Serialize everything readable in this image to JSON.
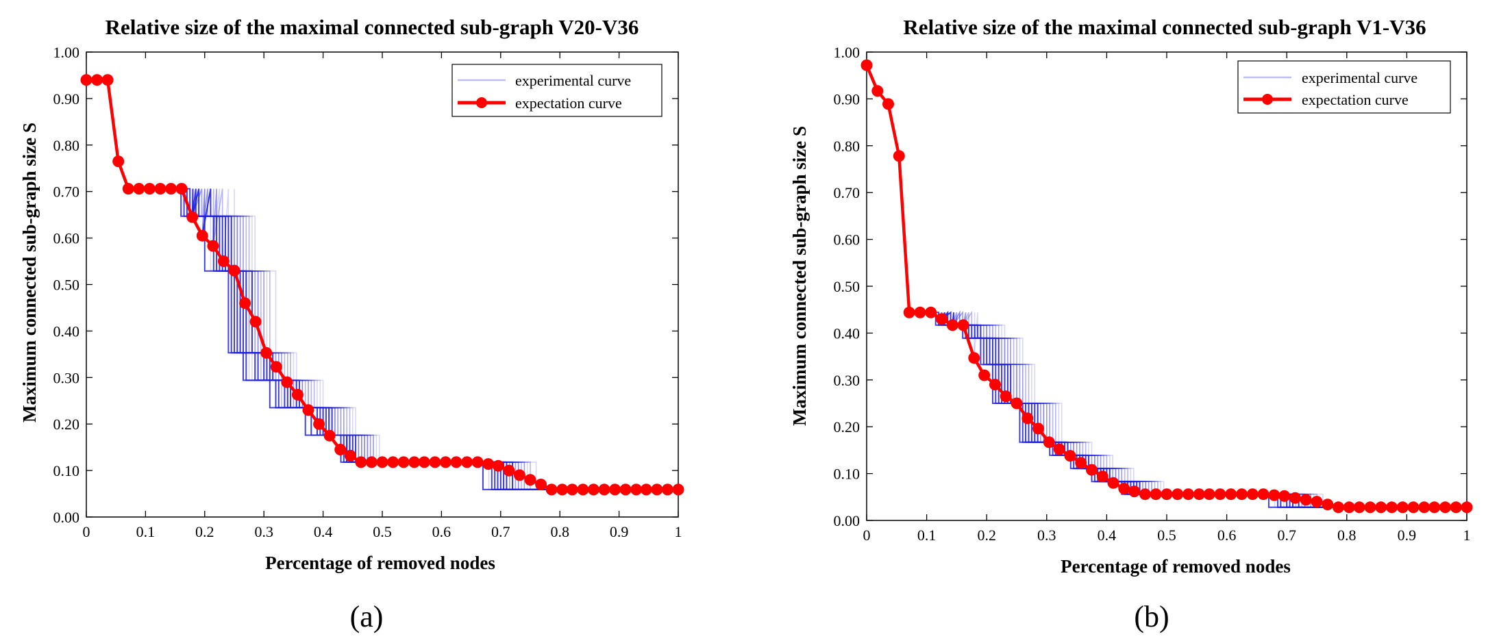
{
  "colors": {
    "experimental": "#2020e0",
    "expectation": "#ff0000",
    "axis": "#000000"
  },
  "chart_data": [
    {
      "type": "line",
      "panel_label": "(a)",
      "title": "Relative size of the maximal connected sub-graph  V20-V36",
      "xlabel": "Percentage of removed nodes",
      "ylabel": "Maximum connected sub-graph size S",
      "xlim": [
        0,
        1
      ],
      "ylim": [
        0,
        1
      ],
      "xticks": [
        "0",
        "0.1",
        "0.2",
        "0.3",
        "0.4",
        "0.5",
        "0.6",
        "0.7",
        "0.8",
        "0.9",
        "1"
      ],
      "yticks": [
        "0.00",
        "0.10",
        "0.20",
        "0.30",
        "0.40",
        "0.50",
        "0.60",
        "0.70",
        "0.80",
        "0.90",
        "1.00"
      ],
      "legend": {
        "position": "top-right",
        "entries": [
          "experimental curve",
          "expectation curve"
        ]
      },
      "expectation": {
        "name": "expectation curve",
        "x": [
          0,
          0.018,
          0.036,
          0.054,
          0.071,
          0.089,
          0.107,
          0.125,
          0.143,
          0.161,
          0.179,
          0.196,
          0.214,
          0.232,
          0.25,
          0.268,
          0.286,
          0.304,
          0.321,
          0.339,
          0.357,
          0.375,
          0.393,
          0.411,
          0.429,
          0.446,
          0.464,
          0.482,
          0.5,
          0.518,
          0.536,
          0.554,
          0.571,
          0.589,
          0.607,
          0.625,
          0.643,
          0.661,
          0.679,
          0.696,
          0.714,
          0.732,
          0.75,
          0.768,
          0.786,
          0.804,
          0.821,
          0.839,
          0.857,
          0.875,
          0.893,
          0.911,
          0.929,
          0.946,
          0.964,
          0.982,
          1.0
        ],
        "y": [
          0.94,
          0.94,
          0.94,
          0.765,
          0.706,
          0.706,
          0.706,
          0.706,
          0.706,
          0.706,
          0.645,
          0.605,
          0.583,
          0.55,
          0.53,
          0.46,
          0.42,
          0.353,
          0.323,
          0.29,
          0.263,
          0.23,
          0.2,
          0.175,
          0.145,
          0.132,
          0.118,
          0.118,
          0.118,
          0.118,
          0.118,
          0.118,
          0.118,
          0.118,
          0.118,
          0.118,
          0.118,
          0.118,
          0.114,
          0.11,
          0.1,
          0.09,
          0.08,
          0.07,
          0.059,
          0.059,
          0.059,
          0.059,
          0.059,
          0.059,
          0.059,
          0.059,
          0.059,
          0.059,
          0.059,
          0.059,
          0.059
        ]
      },
      "experimental": {
        "name": "experimental curve",
        "levels": [
          0.706,
          0.647,
          0.529,
          0.353,
          0.294,
          0.235,
          0.176,
          0.118,
          0.059
        ],
        "drop_x": [
          [
            0.16,
            0.215,
            0.245,
            0.285,
            0.355,
            0.41,
            0.445,
            0.67,
            0.74
          ],
          [
            0.165,
            0.2,
            0.24,
            0.265,
            0.31,
            0.37,
            0.43,
            0.685,
            0.75
          ],
          [
            0.17,
            0.22,
            0.25,
            0.27,
            0.32,
            0.38,
            0.435,
            0.69,
            0.76
          ],
          [
            0.175,
            0.225,
            0.255,
            0.29,
            0.325,
            0.39,
            0.44,
            0.695,
            0.77
          ],
          [
            0.18,
            0.23,
            0.26,
            0.3,
            0.335,
            0.395,
            0.45,
            0.7,
            0.775
          ],
          [
            0.185,
            0.235,
            0.265,
            0.305,
            0.34,
            0.4,
            0.455,
            0.705,
            0.76
          ],
          [
            0.19,
            0.24,
            0.27,
            0.31,
            0.345,
            0.405,
            0.445,
            0.71,
            0.755
          ],
          [
            0.21,
            0.245,
            0.28,
            0.315,
            0.36,
            0.415,
            0.44,
            0.72,
            0.765
          ]
        ],
        "faint_x_offset": [
          0.01,
          0.02,
          0.03,
          0.04
        ]
      }
    },
    {
      "type": "line",
      "panel_label": "(b)",
      "title": "Relative size of the maximal connected sub-graph  V1-V36",
      "xlabel": "Percentage of removed nodes",
      "ylabel": "Maximum connected sub-graph size S",
      "xlim": [
        0,
        1
      ],
      "ylim": [
        0,
        1
      ],
      "xticks": [
        "0",
        "0.1",
        "0.2",
        "0.3",
        "0.4",
        "0.5",
        "0.6",
        "0.7",
        "0.8",
        "0.9",
        "1"
      ],
      "yticks": [
        "0.00",
        "0.10",
        "0.20",
        "0.30",
        "0.40",
        "0.50",
        "0.60",
        "0.70",
        "0.80",
        "0.90",
        "1.00"
      ],
      "legend": {
        "position": "top-right",
        "entries": [
          "experimental curve",
          "expectation curve"
        ]
      },
      "expectation": {
        "name": "expectation curve",
        "x": [
          0,
          0.018,
          0.036,
          0.054,
          0.071,
          0.089,
          0.107,
          0.125,
          0.143,
          0.161,
          0.179,
          0.196,
          0.214,
          0.232,
          0.25,
          0.268,
          0.286,
          0.304,
          0.321,
          0.339,
          0.357,
          0.375,
          0.393,
          0.411,
          0.429,
          0.446,
          0.464,
          0.482,
          0.5,
          0.518,
          0.536,
          0.554,
          0.571,
          0.589,
          0.607,
          0.625,
          0.643,
          0.661,
          0.679,
          0.696,
          0.714,
          0.732,
          0.75,
          0.768,
          0.786,
          0.804,
          0.821,
          0.839,
          0.857,
          0.875,
          0.893,
          0.911,
          0.929,
          0.946,
          0.964,
          0.982,
          1.0
        ],
        "y": [
          0.972,
          0.917,
          0.889,
          0.778,
          0.444,
          0.444,
          0.444,
          0.43,
          0.417,
          0.417,
          0.347,
          0.31,
          0.29,
          0.265,
          0.25,
          0.218,
          0.196,
          0.167,
          0.152,
          0.138,
          0.123,
          0.108,
          0.094,
          0.08,
          0.068,
          0.062,
          0.056,
          0.056,
          0.056,
          0.056,
          0.056,
          0.056,
          0.056,
          0.056,
          0.056,
          0.056,
          0.056,
          0.056,
          0.054,
          0.052,
          0.048,
          0.044,
          0.04,
          0.034,
          0.028,
          0.028,
          0.028,
          0.028,
          0.028,
          0.028,
          0.028,
          0.028,
          0.028,
          0.028,
          0.028,
          0.028,
          0.028
        ]
      },
      "experimental": {
        "name": "experimental curve",
        "levels": [
          0.444,
          0.417,
          0.389,
          0.333,
          0.25,
          0.167,
          0.139,
          0.111,
          0.083,
          0.056,
          0.028
        ],
        "drop_x": [
          [
            0.115,
            0.16,
            0.19,
            0.21,
            0.255,
            0.305,
            0.34,
            0.375,
            0.425,
            0.67,
            0.75
          ],
          [
            0.12,
            0.165,
            0.195,
            0.215,
            0.26,
            0.31,
            0.345,
            0.38,
            0.43,
            0.685,
            0.76
          ],
          [
            0.125,
            0.17,
            0.2,
            0.22,
            0.265,
            0.315,
            0.35,
            0.385,
            0.435,
            0.69,
            0.77
          ],
          [
            0.13,
            0.175,
            0.205,
            0.225,
            0.27,
            0.32,
            0.355,
            0.39,
            0.44,
            0.7,
            0.775
          ],
          [
            0.135,
            0.18,
            0.21,
            0.23,
            0.275,
            0.325,
            0.36,
            0.395,
            0.445,
            0.705,
            0.765
          ],
          [
            0.14,
            0.185,
            0.215,
            0.235,
            0.28,
            0.33,
            0.365,
            0.4,
            0.45,
            0.71,
            0.76
          ],
          [
            0.145,
            0.19,
            0.22,
            0.24,
            0.285,
            0.335,
            0.37,
            0.405,
            0.455,
            0.72,
            0.755
          ]
        ],
        "faint_x_offset": [
          0.01,
          0.02,
          0.03,
          0.04
        ]
      }
    }
  ]
}
